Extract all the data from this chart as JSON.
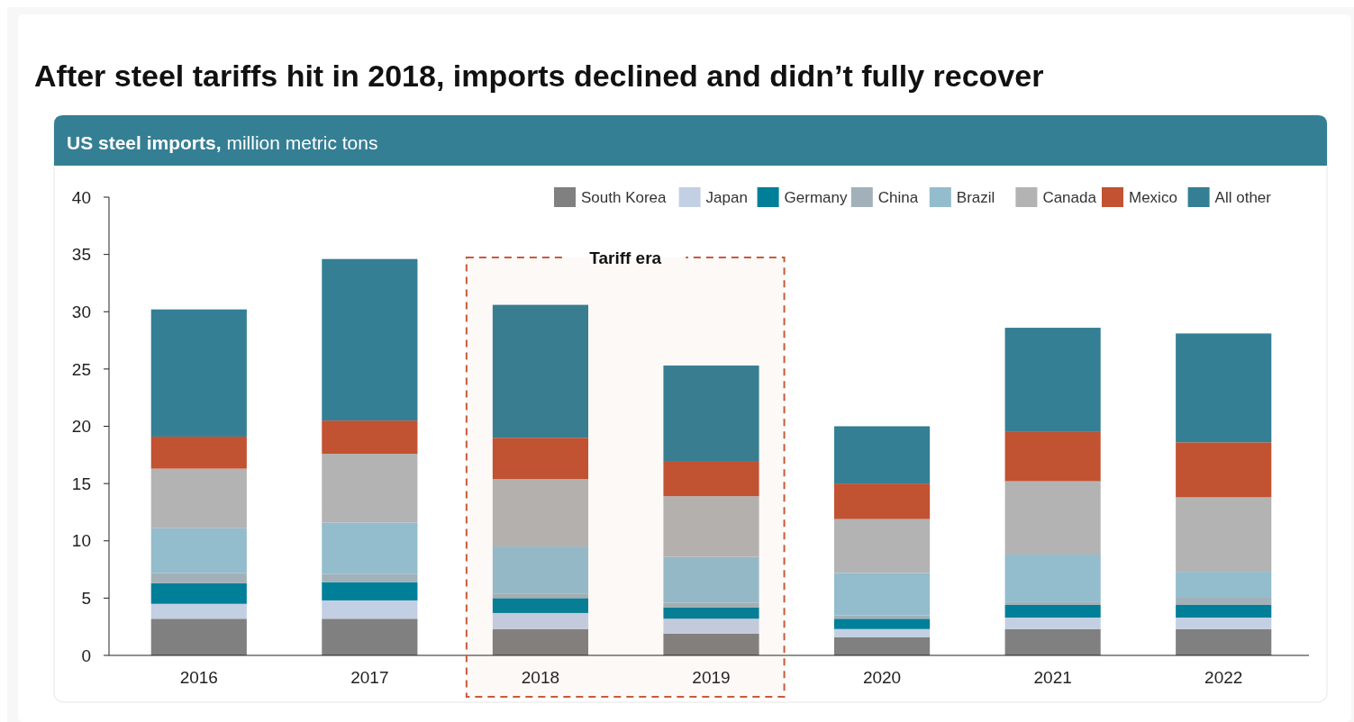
{
  "chart_data": {
    "type": "bar",
    "title": "After steel tariffs hit in 2018, imports declined and didn’t fully recover",
    "subtitle": "US steel imports, million metric tons",
    "categories": [
      "2016",
      "2017",
      "2018",
      "2019",
      "2020",
      "2021",
      "2022"
    ],
    "stacked": true,
    "series": [
      {
        "name": "South Korea",
        "color": "#808080",
        "values": [
          3.2,
          3.2,
          2.3,
          1.9,
          1.6,
          2.3,
          2.3
        ]
      },
      {
        "name": "Japan",
        "color": "#c3cfe2",
        "values": [
          1.3,
          1.6,
          1.4,
          1.3,
          0.7,
          1.0,
          1.0
        ]
      },
      {
        "name": "Germany",
        "color": "#007f99",
        "values": [
          1.8,
          1.6,
          1.3,
          1.0,
          0.9,
          1.1,
          1.1
        ]
      },
      {
        "name": "China",
        "color": "#a2b1b9",
        "values": [
          0.9,
          0.7,
          0.4,
          0.4,
          0.3,
          0.3,
          0.7
        ]
      },
      {
        "name": "Brazil",
        "color": "#93bccc",
        "values": [
          3.9,
          4.5,
          4.1,
          4.0,
          3.7,
          4.1,
          2.2
        ]
      },
      {
        "name": "Canada",
        "color": "#b3b3b3",
        "values": [
          5.2,
          6.0,
          5.9,
          5.3,
          4.7,
          6.4,
          6.5
        ]
      },
      {
        "name": "Mexico",
        "color": "#c15232",
        "values": [
          2.8,
          2.9,
          3.6,
          3.0,
          3.1,
          4.3,
          4.8
        ]
      },
      {
        "name": "All other",
        "color": "#347f94",
        "values": [
          11.1,
          14.1,
          11.6,
          8.4,
          5.0,
          9.1,
          9.5
        ]
      }
    ],
    "ylim": [
      0,
      40
    ],
    "yticks": [
      0,
      5,
      10,
      15,
      20,
      25,
      30,
      35,
      40
    ],
    "bands": [
      {
        "axis": "x",
        "from": "2018",
        "to": "2019",
        "label": "Tariff era",
        "color": "#c85a3a"
      }
    ],
    "legend": "top right",
    "grid": false
  }
}
